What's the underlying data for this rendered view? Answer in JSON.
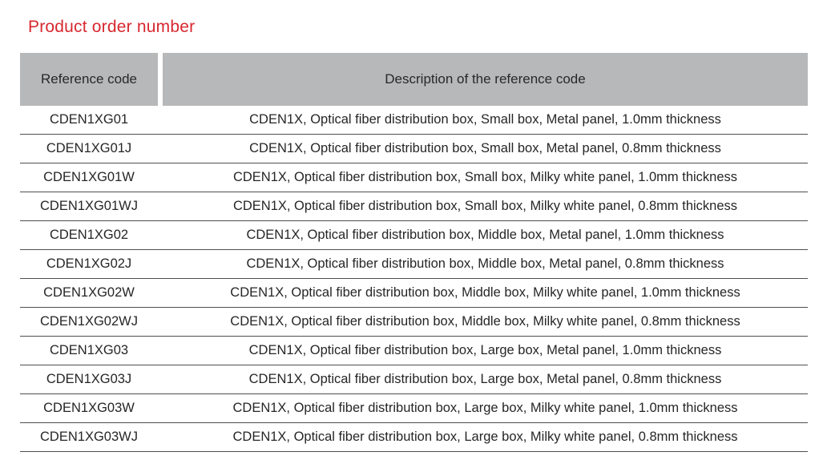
{
  "page": {
    "title": "Product order number",
    "title_color": "#d7282f"
  },
  "table": {
    "header_bg": "#b6b8ba",
    "columns": [
      {
        "label": "Reference code"
      },
      {
        "label": "Description of the reference code"
      }
    ],
    "rows": [
      {
        "code": "CDEN1XG01",
        "description": "CDEN1X, Optical fiber distribution box, Small box, Metal panel, 1.0mm thickness"
      },
      {
        "code": "CDEN1XG01J",
        "description": "CDEN1X, Optical fiber distribution box, Small box, Metal panel, 0.8mm thickness"
      },
      {
        "code": "CDEN1XG01W",
        "description": "CDEN1X, Optical fiber distribution box, Small box, Milky white panel, 1.0mm thickness"
      },
      {
        "code": "CDEN1XG01WJ",
        "description": "CDEN1X, Optical fiber distribution box, Small box, Milky white panel, 0.8mm thickness"
      },
      {
        "code": "CDEN1XG02",
        "description": "CDEN1X, Optical fiber distribution box, Middle box, Metal panel, 1.0mm thickness"
      },
      {
        "code": "CDEN1XG02J",
        "description": "CDEN1X, Optical fiber distribution box, Middle box, Metal panel, 0.8mm thickness"
      },
      {
        "code": "CDEN1XG02W",
        "description": "CDEN1X, Optical fiber distribution box, Middle box, Milky white panel, 1.0mm thickness"
      },
      {
        "code": "CDEN1XG02WJ",
        "description": "CDEN1X, Optical fiber distribution box, Middle box, Milky white panel, 0.8mm thickness"
      },
      {
        "code": "CDEN1XG03",
        "description": "CDEN1X, Optical fiber distribution box, Large box, Metal panel, 1.0mm thickness"
      },
      {
        "code": "CDEN1XG03J",
        "description": "CDEN1X, Optical fiber distribution box, Large box, Metal panel, 0.8mm thickness"
      },
      {
        "code": "CDEN1XG03W",
        "description": "CDEN1X, Optical fiber distribution box, Large box, Milky white panel, 1.0mm thickness"
      },
      {
        "code": "CDEN1XG03WJ",
        "description": "CDEN1X, Optical fiber distribution box, Large box, Milky white panel, 0.8mm thickness"
      }
    ]
  }
}
